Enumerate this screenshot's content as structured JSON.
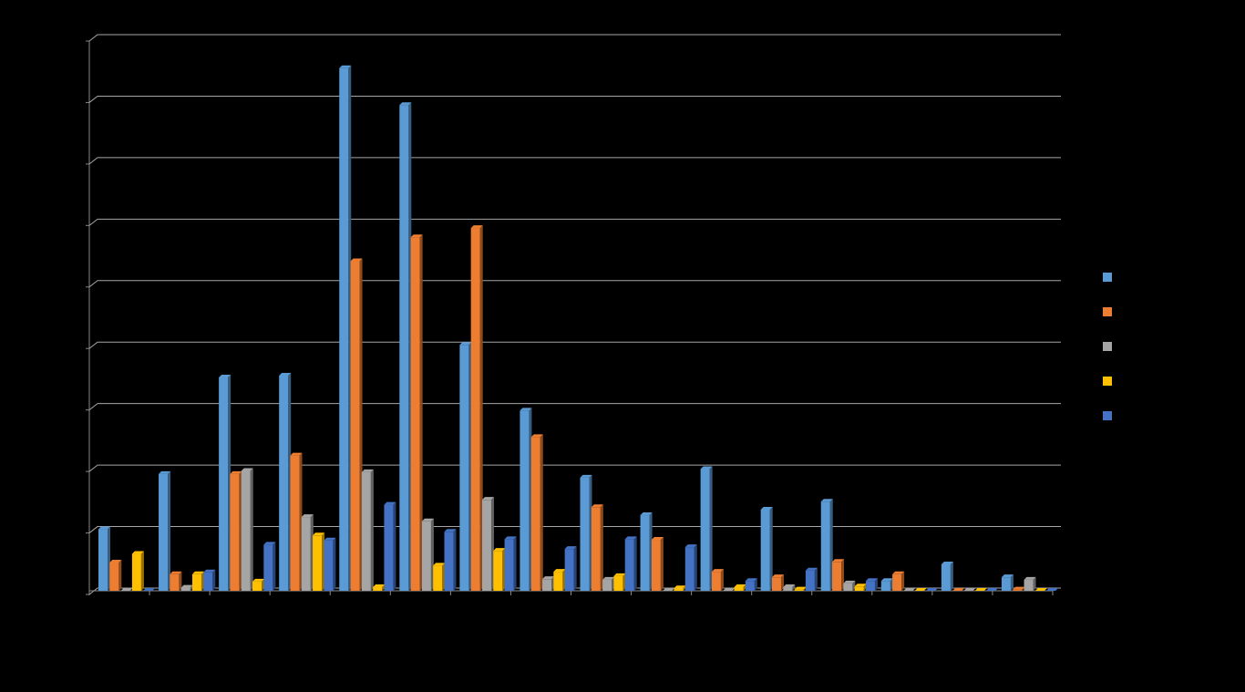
{
  "chart_data": {
    "type": "bar",
    "categories": [
      null,
      null,
      null,
      null,
      null,
      null,
      null,
      null,
      null,
      null,
      null,
      null,
      null,
      null,
      null,
      null
    ],
    "series": [
      {
        "color": "#5b9bd5",
        "values": [
          1.0,
          1.9,
          3.47,
          3.5,
          8.5,
          7.9,
          4.0,
          2.93,
          1.84,
          1.23,
          1.98,
          1.32,
          1.45,
          0.16,
          0.43,
          0.22
        ]
      },
      {
        "color": "#ed7d31",
        "values": [
          0.46,
          0.27,
          1.9,
          2.2,
          5.36,
          5.75,
          5.9,
          2.5,
          1.36,
          0.83,
          0.31,
          0.22,
          0.47,
          0.27,
          0,
          0.02
        ]
      },
      {
        "color": "#a5a5a5",
        "values": [
          0,
          0.05,
          1.95,
          1.2,
          1.93,
          1.13,
          1.48,
          0.19,
          0.18,
          0,
          0,
          0.06,
          0.12,
          0,
          0,
          0.18
        ]
      },
      {
        "color": "#ffc000",
        "values": [
          0.6,
          0.27,
          0.15,
          0.9,
          0.06,
          0.41,
          0.65,
          0.31,
          0.24,
          0.04,
          0.06,
          0.02,
          0.07,
          0,
          0,
          0
        ]
      },
      {
        "color": "#4472c4",
        "values": [
          0,
          0.3,
          0.75,
          0.82,
          1.4,
          0.96,
          0.84,
          0.68,
          0.84,
          0.71,
          0.16,
          0.33,
          0.16,
          0,
          0,
          0
        ]
      }
    ],
    "ylim": [
      0,
      9
    ],
    "yticks": [
      0,
      1,
      2,
      3,
      4,
      5,
      6,
      7,
      8,
      9
    ],
    "grid": true
  }
}
